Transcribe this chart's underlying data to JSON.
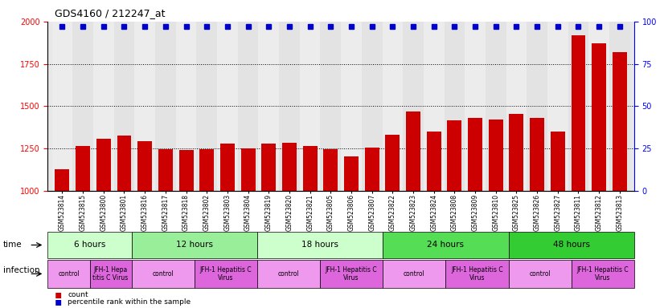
{
  "title": "GDS4160 / 212247_at",
  "samples": [
    "GSM523814",
    "GSM523815",
    "GSM523800",
    "GSM523801",
    "GSM523816",
    "GSM523817",
    "GSM523818",
    "GSM523802",
    "GSM523803",
    "GSM523804",
    "GSM523819",
    "GSM523820",
    "GSM523821",
    "GSM523805",
    "GSM523806",
    "GSM523807",
    "GSM523822",
    "GSM523823",
    "GSM523824",
    "GSM523808",
    "GSM523809",
    "GSM523810",
    "GSM523825",
    "GSM523826",
    "GSM523827",
    "GSM523811",
    "GSM523812",
    "GSM523813"
  ],
  "counts": [
    1130,
    1265,
    1310,
    1325,
    1295,
    1248,
    1242,
    1248,
    1280,
    1250,
    1280,
    1285,
    1265,
    1248,
    1205,
    1255,
    1330,
    1470,
    1350,
    1415,
    1430,
    1420,
    1455,
    1430,
    1350,
    1920,
    1870,
    1820
  ],
  "percentile_ranks": [
    97,
    97,
    97,
    97,
    97,
    97,
    97,
    97,
    97,
    97,
    97,
    97,
    97,
    97,
    97,
    97,
    97,
    97,
    97,
    97,
    97,
    97,
    97,
    97,
    97,
    97,
    97,
    97
  ],
  "bar_color": "#cc0000",
  "dot_color": "#0000cc",
  "ylim_left": [
    1000,
    2000
  ],
  "ylim_right": [
    0,
    100
  ],
  "yticks_left": [
    1000,
    1250,
    1500,
    1750,
    2000
  ],
  "yticks_right": [
    0,
    25,
    50,
    75,
    100
  ],
  "dotted_lines": [
    1250,
    1500,
    1750
  ],
  "time_groups": [
    {
      "label": "6 hours",
      "start": 0,
      "end": 4,
      "color": "#ccffcc"
    },
    {
      "label": "12 hours",
      "start": 4,
      "end": 10,
      "color": "#99ee99"
    },
    {
      "label": "18 hours",
      "start": 10,
      "end": 16,
      "color": "#ccffcc"
    },
    {
      "label": "24 hours",
      "start": 16,
      "end": 22,
      "color": "#55dd55"
    },
    {
      "label": "48 hours",
      "start": 22,
      "end": 28,
      "color": "#33cc33"
    }
  ],
  "infection_groups": [
    {
      "label": "control",
      "start": 0,
      "end": 2,
      "color": "#ee99ee"
    },
    {
      "label": "JFH-1 Hepa\ntitis C Virus",
      "start": 2,
      "end": 4,
      "color": "#dd66dd"
    },
    {
      "label": "control",
      "start": 4,
      "end": 7,
      "color": "#ee99ee"
    },
    {
      "label": "JFH-1 Hepatitis C\nVirus",
      "start": 7,
      "end": 10,
      "color": "#dd66dd"
    },
    {
      "label": "control",
      "start": 10,
      "end": 13,
      "color": "#ee99ee"
    },
    {
      "label": "JFH-1 Hepatitis C\nVirus",
      "start": 13,
      "end": 16,
      "color": "#dd66dd"
    },
    {
      "label": "control",
      "start": 16,
      "end": 19,
      "color": "#ee99ee"
    },
    {
      "label": "JFH-1 Hepatitis C\nVirus",
      "start": 19,
      "end": 22,
      "color": "#dd66dd"
    },
    {
      "label": "control",
      "start": 22,
      "end": 25,
      "color": "#ee99ee"
    },
    {
      "label": "JFH-1 Hepatitis C\nVirus",
      "start": 25,
      "end": 28,
      "color": "#dd66dd"
    }
  ],
  "background_color": "#ffffff",
  "plot_bg_color": "#e8e8e8"
}
